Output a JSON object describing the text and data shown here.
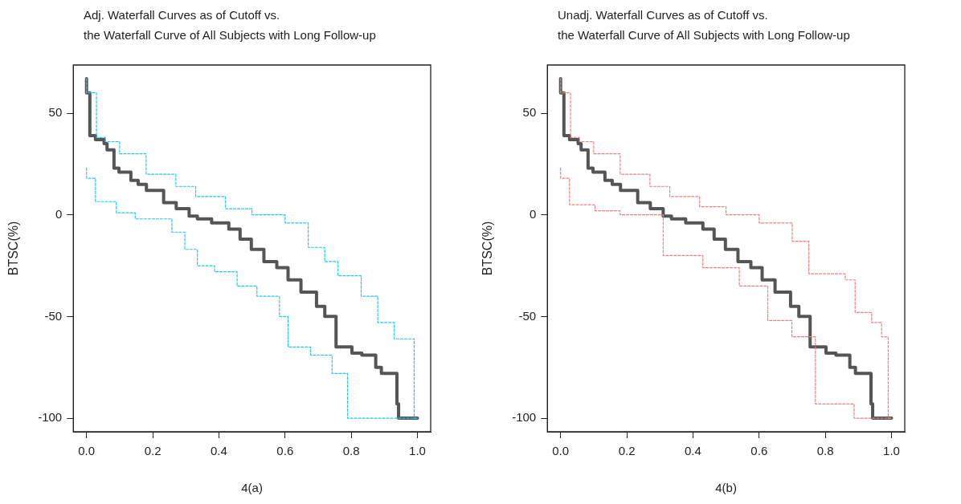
{
  "chart_data": [
    {
      "type": "step",
      "title": "Adj. Waterfall Curves as of Cutoff vs.\nthe Waterfall Curve of All Subjects with Long Follow-up",
      "xlabel": "4(a)",
      "ylabel": "BTSC(%)",
      "xlim": [
        -0.04,
        1.04
      ],
      "ylim": [
        -106.7,
        73.7
      ],
      "xticks": [
        {
          "value": 0,
          "label": "0.0"
        },
        {
          "value": 0.2,
          "label": "0.2"
        },
        {
          "value": 0.4,
          "label": "0.4"
        },
        {
          "value": 0.6,
          "label": "0.6"
        },
        {
          "value": 0.8,
          "label": "0.8"
        },
        {
          "value": 1,
          "label": "1.0"
        }
      ],
      "yticks": [
        -100,
        -50,
        0,
        50
      ],
      "grid": false,
      "legend": false,
      "series": [
        {
          "type": "step",
          "color": "#1ec8f5",
          "line_style": "dashed",
          "x": [
            0,
            0.03,
            0.057,
            0.1,
            0.18,
            0.27,
            0.33,
            0.42,
            0.5,
            0.6,
            0.67,
            0.72,
            0.76,
            0.83,
            0.88,
            0.93,
            0.99,
            1.0
          ],
          "values": [
            67,
            60,
            38,
            36,
            30,
            20,
            14,
            9,
            3,
            0,
            -4,
            -16,
            -23,
            -30,
            -40,
            -53,
            -61,
            -100
          ]
        },
        {
          "type": "step",
          "color": "#1ec8f5",
          "line_style": "dashed",
          "x": [
            0,
            0.027,
            0.09,
            0.147,
            0.258,
            0.297,
            0.335,
            0.387,
            0.455,
            0.515,
            0.583,
            0.609,
            0.677,
            0.742,
            0.789,
            0.802,
            1.0
          ],
          "values": [
            23,
            18,
            6.5,
            1,
            -2,
            -8.5,
            -17,
            -25,
            -28,
            -35,
            -40,
            -50,
            -65,
            -69,
            -78,
            -100,
            -100
          ]
        },
        {
          "type": "step",
          "color": "#555555",
          "line_style": "solid",
          "x": [
            0,
            0.01,
            0.027,
            0.053,
            0.062,
            0.083,
            0.098,
            0.134,
            0.156,
            0.181,
            0.233,
            0.271,
            0.31,
            0.335,
            0.378,
            0.43,
            0.464,
            0.498,
            0.536,
            0.575,
            0.609,
            0.648,
            0.695,
            0.72,
            0.754,
            0.802,
            0.832,
            0.874,
            0.891,
            0.938,
            0.943,
            0.958,
            1.0
          ],
          "values": [
            67,
            60,
            39,
            37,
            35,
            32,
            23,
            21,
            17,
            15,
            12,
            6,
            3,
            -0.6,
            -2,
            -4,
            -7,
            -12,
            -17,
            -23,
            -26,
            -32,
            -38,
            -45,
            -50,
            -65,
            -68,
            -69,
            -75,
            -78,
            -93,
            -100,
            -100
          ]
        }
      ]
    },
    {
      "type": "step",
      "title": "Unadj. Waterfall Curves as of Cutoff vs.\nthe Waterfall Curve of All Subjects with Long Follow-up",
      "xlabel": "4(b)",
      "ylabel": "BTSC(%)",
      "xlim": [
        -0.04,
        1.04
      ],
      "ylim": [
        -106.7,
        73.7
      ],
      "xticks": [
        {
          "value": 0,
          "label": "0.0"
        },
        {
          "value": 0.2,
          "label": "0.2"
        },
        {
          "value": 0.4,
          "label": "0.4"
        },
        {
          "value": 0.6,
          "label": "0.6"
        },
        {
          "value": 0.8,
          "label": "0.8"
        },
        {
          "value": 1,
          "label": "1.0"
        }
      ],
      "yticks": [
        -100,
        -50,
        0,
        50
      ],
      "grid": false,
      "legend": false,
      "series": [
        {
          "type": "step",
          "color": "#f08080",
          "line_style": "dashed",
          "x": [
            0,
            0.03,
            0.057,
            0.1,
            0.18,
            0.27,
            0.33,
            0.42,
            0.5,
            0.6,
            0.7,
            0.75,
            0.86,
            0.89,
            0.94,
            0.97,
            0.99,
            1.0
          ],
          "values": [
            67,
            60,
            38,
            36,
            30,
            20,
            14,
            9,
            4,
            0,
            -4,
            -13,
            -29,
            -32,
            -48,
            -53,
            -60,
            -100
          ]
        },
        {
          "type": "step",
          "color": "#f08080",
          "line_style": "dashed",
          "x": [
            0,
            0.027,
            0.104,
            0.18,
            0.31,
            0.43,
            0.54,
            0.626,
            0.699,
            0.77,
            0.887,
            0.917,
            1.0
          ],
          "values": [
            23,
            18,
            5,
            2,
            0,
            -20,
            -26,
            -35,
            -52,
            -60,
            -93,
            -100,
            -100
          ]
        },
        {
          "type": "step",
          "color": "#555555",
          "line_style": "solid",
          "x": [
            0,
            0.01,
            0.027,
            0.053,
            0.062,
            0.083,
            0.098,
            0.134,
            0.156,
            0.181,
            0.233,
            0.271,
            0.31,
            0.335,
            0.378,
            0.43,
            0.464,
            0.498,
            0.536,
            0.575,
            0.609,
            0.648,
            0.695,
            0.72,
            0.754,
            0.802,
            0.832,
            0.874,
            0.891,
            0.938,
            0.943,
            0.958,
            1.0
          ],
          "values": [
            67,
            60,
            39,
            37,
            35,
            32,
            23,
            21,
            17,
            15,
            12,
            6,
            3,
            -0.6,
            -2,
            -4,
            -7,
            -12,
            -17,
            -23,
            -26,
            -32,
            -38,
            -45,
            -50,
            -65,
            -68,
            -69,
            -75,
            -78,
            -93,
            -100,
            -100
          ]
        }
      ]
    }
  ]
}
